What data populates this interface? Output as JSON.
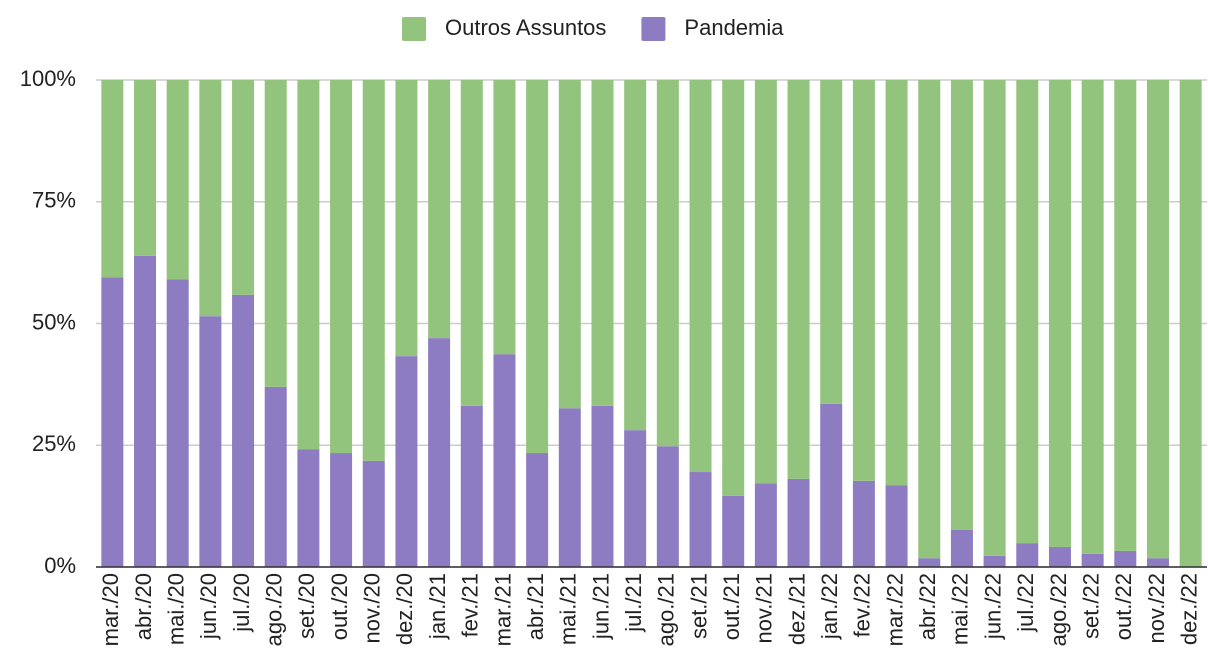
{
  "chart_data": {
    "type": "stacked_bar",
    "categories": [
      "mar./20",
      "abr./20",
      "mai./20",
      "jun./20",
      "jul./20",
      "ago./20",
      "set./20",
      "out./20",
      "nov./20",
      "dez./20",
      "jan./21",
      "fev./21",
      "mar./21",
      "abr./21",
      "mai./21",
      "jun./21",
      "jul./21",
      "ago./21",
      "set./21",
      "out./21",
      "nov./21",
      "dez./21",
      "jan./22",
      "fev./22",
      "mar./22",
      "abr./22",
      "mai./22",
      "jun./22",
      "jul./22",
      "ago./22",
      "set./22",
      "out./22",
      "nov./22",
      "dez./22"
    ],
    "series": [
      {
        "name": "Outros Assuntos",
        "color": "#93c47d",
        "values": [
          40.5,
          36.1,
          40.9,
          48.5,
          44.1,
          63,
          75.8,
          76.6,
          78.2,
          56.7,
          53,
          66.9,
          56.3,
          76.6,
          67.4,
          66.9,
          71.9,
          75.2,
          80.5,
          85.4,
          82.8,
          81.9,
          66.5,
          82.3,
          83.2,
          98.2,
          92.4,
          97.7,
          95.1,
          95.9,
          97.3,
          96.7,
          98.2,
          100
        ]
      },
      {
        "name": "Pandemia",
        "color": "#8e7cc3",
        "values": [
          59.5,
          63.9,
          59.1,
          51.5,
          55.9,
          37,
          24.2,
          23.4,
          21.8,
          43.3,
          47,
          33.1,
          43.7,
          23.4,
          32.6,
          33.1,
          28.1,
          24.8,
          19.5,
          14.6,
          17.2,
          18.1,
          33.5,
          17.7,
          16.8,
          1.8,
          7.6,
          2.3,
          4.9,
          4.1,
          2.7,
          3.3,
          1.8,
          0
        ]
      }
    ],
    "ylim": [
      0,
      100
    ],
    "yticks": [
      {
        "value": 0,
        "label": "0%"
      },
      {
        "value": 25,
        "label": "25%"
      },
      {
        "value": 50,
        "label": "50%"
      },
      {
        "value": 75,
        "label": "75%"
      },
      {
        "value": 100,
        "label": "100%"
      }
    ],
    "grid": true,
    "legend": "top"
  }
}
